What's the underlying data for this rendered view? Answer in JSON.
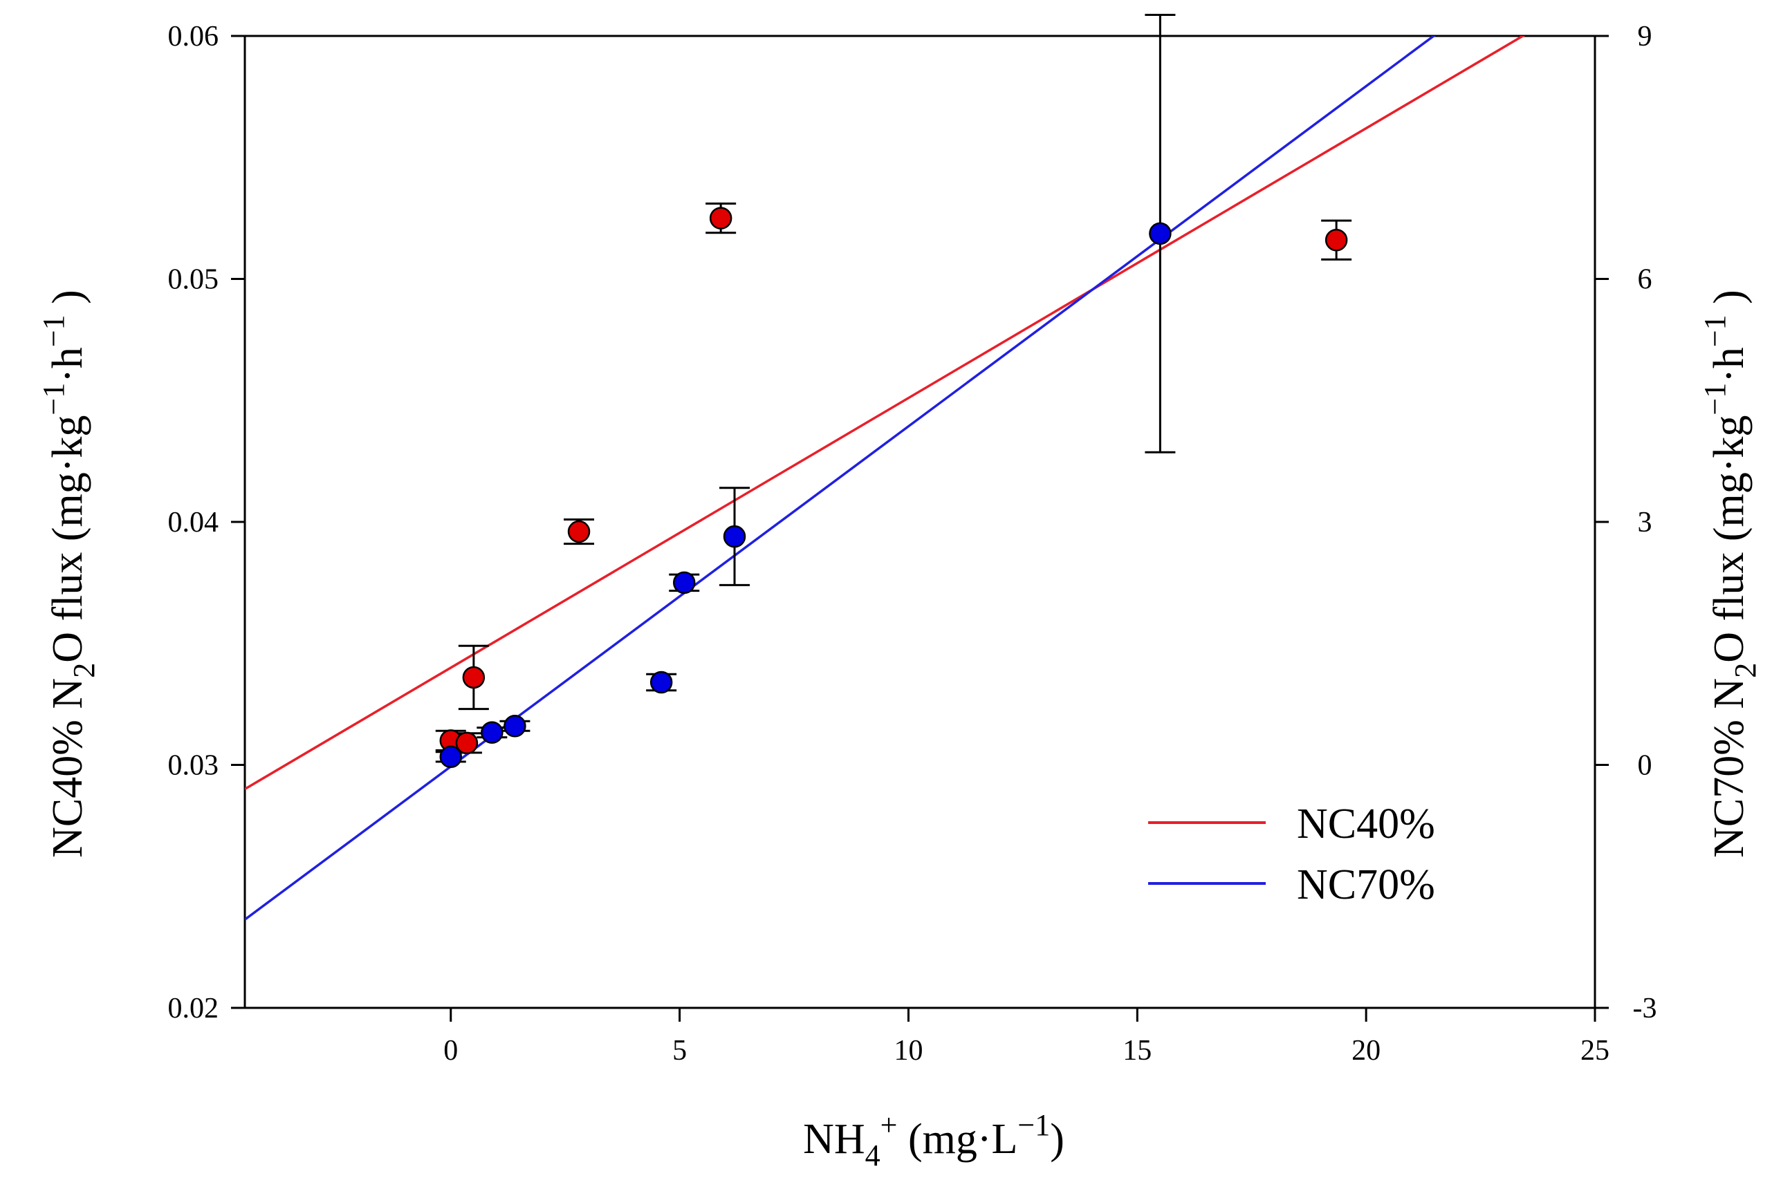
{
  "chart_data": {
    "type": "scatter",
    "title": "",
    "xlabel": {
      "prefix": "NH",
      "sub": "4",
      "sup": "+",
      "suffix": " (mg·L",
      "unit_sup": "−1",
      "close": ")"
    },
    "ylabel_left": {
      "prefix": "NC40%  N",
      "sub": "2",
      "mid": "O flux (mg·kg",
      "sup1": "−1",
      "dot": "·h",
      "sup2": "−1",
      "close": " )"
    },
    "ylabel_right": {
      "prefix": "NC70%  N",
      "sub": "2",
      "mid": "O flux (mg·kg",
      "sup1": "−1",
      "dot": "·h",
      "sup2": "−1",
      "close": " )"
    },
    "xlim": [
      -4.5,
      25
    ],
    "ylim_left": [
      0.02,
      0.06
    ],
    "ylim_right": [
      -3,
      9
    ],
    "x_ticks": [
      0,
      5,
      10,
      15,
      20,
      25
    ],
    "x_tick_labels": [
      "0",
      "5",
      "10",
      "15",
      "20",
      "25"
    ],
    "y_left_ticks": [
      0.02,
      0.03,
      0.04,
      0.05,
      0.06
    ],
    "y_left_tick_labels": [
      "0.02",
      "0.03",
      "0.04",
      "0.05",
      "0.06"
    ],
    "y_right_ticks": [
      -3,
      0,
      3,
      6,
      9
    ],
    "y_right_tick_labels": [
      "-3",
      "0",
      "3",
      "6",
      "9"
    ],
    "legend_position": "bottom-right",
    "series": [
      {
        "name": "NC40%",
        "axis": "left",
        "color": "#e8202a",
        "marker_fill": "#e00000",
        "points": [
          {
            "x": 0.0,
            "y": 0.031,
            "err": 0.0004
          },
          {
            "x": 0.35,
            "y": 0.0309,
            "err": 0.0004
          },
          {
            "x": 0.5,
            "y": 0.0336,
            "err": 0.0013
          },
          {
            "x": 2.8,
            "y": 0.0396,
            "err": 0.0005
          },
          {
            "x": 5.9,
            "y": 0.0525,
            "err": 0.0006
          },
          {
            "x": 19.35,
            "y": 0.0516,
            "err": 0.0008
          }
        ],
        "fit": {
          "slope": 0.00111,
          "intercept": 0.034
        }
      },
      {
        "name": "NC70%",
        "axis": "right",
        "color": "#2020e0",
        "marker_fill": "#0000e0",
        "points": [
          {
            "x": 0.0,
            "y": 0.1,
            "err": 0.06
          },
          {
            "x": 0.9,
            "y": 0.4,
            "err": 0.06
          },
          {
            "x": 1.4,
            "y": 0.48,
            "err": 0.06
          },
          {
            "x": 4.6,
            "y": 1.02,
            "err": 0.1
          },
          {
            "x": 5.1,
            "y": 2.25,
            "err": 0.1
          },
          {
            "x": 6.2,
            "y": 2.82,
            "err": 0.6
          },
          {
            "x": 15.5,
            "y": 6.56,
            "err": 2.7
          }
        ],
        "fit": {
          "slope": 0.42,
          "intercept": -0.02
        }
      }
    ]
  }
}
